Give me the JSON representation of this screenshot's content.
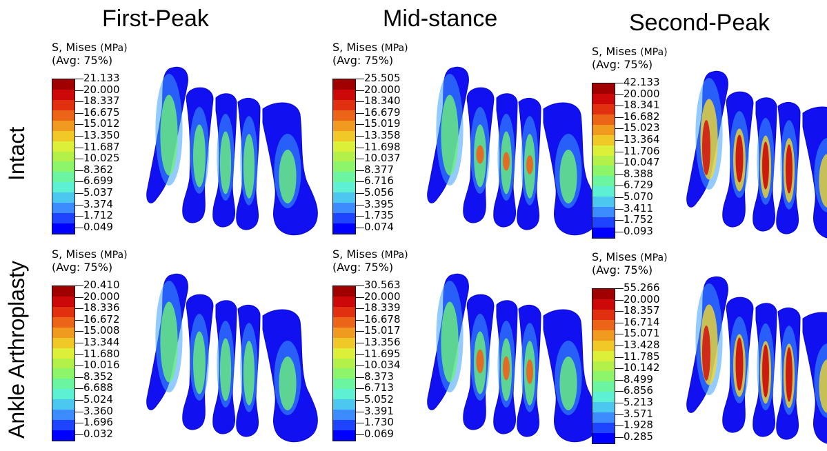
{
  "columns": [
    "First-Peak",
    "Mid-stance",
    "Second-Peak"
  ],
  "rows": [
    "Intact",
    "Ankle Arthroplasty"
  ],
  "legend": {
    "line1": "S, Mises",
    "unit": "(MPa)",
    "line2": "(Avg: 75%)"
  },
  "colorbar": [
    "#0000ff",
    "#1f44ff",
    "#3c8cff",
    "#4cc8f0",
    "#5ef0d2",
    "#6cf5a0",
    "#8cf56a",
    "#b4f04a",
    "#dcf03a",
    "#f0c828",
    "#f09a20",
    "#ec6418",
    "#e03010",
    "#cc0808",
    "#a00000"
  ],
  "panels": [
    {
      "row": 0,
      "col": 0,
      "ticks": [
        "21.133",
        "20.000",
        "18.337",
        "16.675",
        "15.012",
        "13.350",
        "11.687",
        "10.025",
        "8.362",
        "6.699",
        "5.037",
        "3.374",
        "1.712",
        "0.049"
      ],
      "hot": 0.15
    },
    {
      "row": 0,
      "col": 1,
      "ticks": [
        "25.505",
        "20.000",
        "18.340",
        "16.679",
        "15.019",
        "13.358",
        "11.698",
        "10.037",
        "8.377",
        "6.716",
        "5.056",
        "3.395",
        "1.735",
        "0.074"
      ],
      "hot": 0.35
    },
    {
      "row": 0,
      "col": 2,
      "ticks": [
        "42.133",
        "20.000",
        "18.341",
        "16.682",
        "15.023",
        "13.364",
        "11.706",
        "10.047",
        "8.388",
        "6.729",
        "5.070",
        "3.411",
        "1.752",
        "0.093"
      ],
      "hot": 0.9
    },
    {
      "row": 1,
      "col": 0,
      "ticks": [
        "20.410",
        "20.000",
        "18.336",
        "16.672",
        "15.008",
        "13.344",
        "11.680",
        "10.016",
        "8.352",
        "6.688",
        "5.024",
        "3.360",
        "1.696",
        "0.032"
      ],
      "hot": 0.2
    },
    {
      "row": 1,
      "col": 1,
      "ticks": [
        "30.563",
        "20.000",
        "18.339",
        "16.678",
        "15.017",
        "13.356",
        "11.695",
        "10.034",
        "8.373",
        "6.713",
        "5.052",
        "3.391",
        "1.730",
        "0.069"
      ],
      "hot": 0.45
    },
    {
      "row": 1,
      "col": 2,
      "ticks": [
        "55.266",
        "20.000",
        "18.357",
        "16.714",
        "15.071",
        "13.428",
        "11.785",
        "10.142",
        "8.499",
        "6.856",
        "5.213",
        "3.571",
        "1.928",
        "0.285"
      ],
      "hot": 1.0
    }
  ]
}
